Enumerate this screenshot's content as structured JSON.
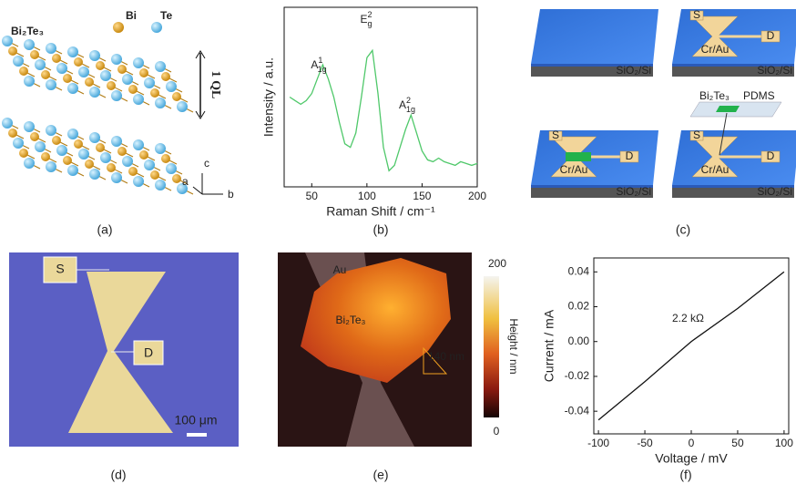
{
  "chart_data": [
    {
      "type": "line",
      "xlabel": "Raman Shift / cm⁻¹",
      "ylabel": "Intensity / a.u.",
      "x": [
        30,
        35,
        40,
        45,
        50,
        55,
        60,
        65,
        70,
        75,
        80,
        85,
        90,
        95,
        100,
        105,
        110,
        115,
        120,
        125,
        130,
        135,
        140,
        145,
        150,
        155,
        160,
        165,
        170,
        175,
        180,
        185,
        190,
        195,
        200
      ],
      "values": [
        50,
        48,
        46,
        48,
        52,
        60,
        68,
        60,
        50,
        36,
        24,
        22,
        30,
        50,
        72,
        76,
        52,
        22,
        9,
        12,
        22,
        32,
        40,
        30,
        20,
        15,
        14,
        16,
        14,
        13,
        12,
        14,
        13,
        12,
        13
      ],
      "color": "#4fc86a",
      "xlim": [
        25,
        200
      ],
      "xticks": [
        50,
        100,
        150,
        200
      ],
      "ylim": [
        0,
        100
      ],
      "annotations": [
        {
          "base": "A",
          "sup": "1",
          "sub": "1g"
        },
        {
          "base": "E",
          "sup": "2",
          "sub": "g"
        },
        {
          "base": "A",
          "sup": "2",
          "sub": "1g"
        }
      ]
    },
    {
      "type": "line",
      "xlabel": "Voltage / mV",
      "ylabel": "Current / mA",
      "x": [
        -100,
        -50,
        0,
        50,
        100
      ],
      "values": [
        -0.045,
        -0.023,
        0,
        0.019,
        0.04
      ],
      "color": "#111111",
      "xlim": [
        -105,
        105
      ],
      "xticks": [
        -100,
        -50,
        0,
        50,
        100
      ],
      "ylim": [
        -0.053,
        0.048
      ],
      "yticks": [
        -0.04,
        -0.02,
        {
          "value": 0,
          "label": "0.00"
        },
        0.02,
        0.04
      ],
      "annotations": [
        "2.2 kΩ"
      ]
    }
  ],
  "panels": {
    "labels": [
      "(a)",
      "(b)",
      "(c)",
      "(d)",
      "(e)",
      "(f)"
    ],
    "a": {
      "formula": "Bi₂Te₃",
      "legend": [
        "Bi",
        "Te"
      ],
      "layer": "1 QL",
      "axes": [
        "c",
        "a",
        "b"
      ]
    },
    "c": {
      "substrate": "SiO₂/Si",
      "source": "S",
      "drain": "D",
      "electrode": "Cr/Au",
      "flake": "Bi₂Te₃",
      "stamp": "PDMS"
    },
    "d": {
      "source": "S",
      "drain": "D",
      "scale": "100 μm"
    },
    "e": {
      "electrode": "Au",
      "flake": "Bi₂Te₃",
      "step": "140 nm",
      "colorbar": {
        "label": "Height / nm",
        "top": "200",
        "bottom": "0"
      }
    }
  }
}
